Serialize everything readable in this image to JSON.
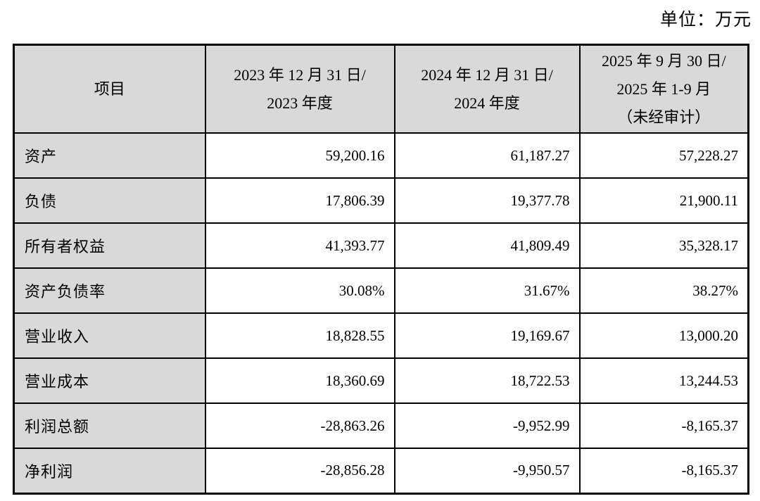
{
  "page": {
    "unit_label": "单位：万元"
  },
  "colors": {
    "header_bg": "#d9d9d9",
    "border": "#000000",
    "text": "#000000",
    "page_bg": "#ffffff"
  },
  "table": {
    "header": {
      "item": "项目",
      "col_2023": {
        "line1": "2023 年 12 月 31 日/",
        "line2": "2023 年度"
      },
      "col_2024": {
        "line1": "2024 年 12 月 31 日/",
        "line2": "2024 年度"
      },
      "col_2025": {
        "line1": "2025 年 9 月 30 日/",
        "line2": "2025 年 1-9 月",
        "line3": "（未经审计）"
      }
    },
    "rows": [
      {
        "label": "资产",
        "values": [
          "59,200.16",
          "61,187.27",
          "57,228.27"
        ]
      },
      {
        "label": "负债",
        "values": [
          "17,806.39",
          "19,377.78",
          "21,900.11"
        ]
      },
      {
        "label": "所有者权益",
        "values": [
          "41,393.77",
          "41,809.49",
          "35,328.17"
        ]
      },
      {
        "label": "资产负债率",
        "values": [
          "30.08%",
          "31.67%",
          "38.27%"
        ]
      },
      {
        "label": "营业收入",
        "values": [
          "18,828.55",
          "19,169.67",
          "13,000.20"
        ]
      },
      {
        "label": "营业成本",
        "values": [
          "18,360.69",
          "18,722.53",
          "13,244.53"
        ]
      },
      {
        "label": "利润总额",
        "values": [
          "-28,863.26",
          "-9,952.99",
          "-8,165.37"
        ]
      },
      {
        "label": "净利润",
        "values": [
          "-28,856.28",
          "-9,950.57",
          "-8,165.37"
        ]
      }
    ]
  }
}
